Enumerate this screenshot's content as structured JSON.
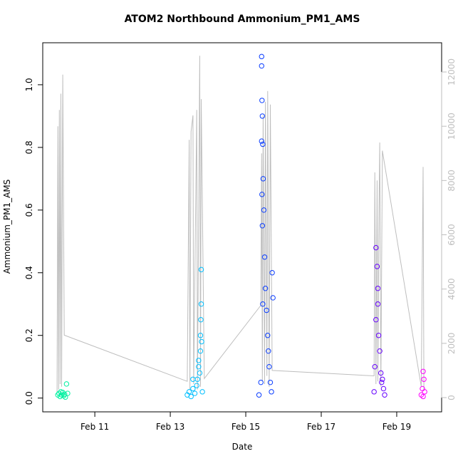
{
  "chart_data": {
    "type": "scatter",
    "title": "ATOM2 Northbound Ammonium_PM1_AMS",
    "x_label": "Date",
    "y_label": "Ammonium_PM1_AMS",
    "xlim": [
      9.62,
      20.19
    ],
    "ylim": [
      -0.044,
      1.134
    ],
    "y2lim": [
      -525,
      13077
    ],
    "xticks": [
      {
        "value": 11,
        "label": "Feb 11"
      },
      {
        "value": 13,
        "label": "Feb 13"
      },
      {
        "value": 15,
        "label": "Feb 15"
      },
      {
        "value": 17,
        "label": "Feb 17"
      },
      {
        "value": 19,
        "label": "Feb 19"
      }
    ],
    "yticks": [
      {
        "value": 0,
        "label": "0.0"
      },
      0.2,
      0.4,
      0.6,
      0.8,
      {
        "value": 1,
        "label": "1.0"
      }
    ],
    "y2ticks": [
      0,
      2000,
      4000,
      6000,
      8000,
      10000,
      12000
    ],
    "series": [
      {
        "color": "#00f0a0",
        "x": [
          10.02,
          10.05,
          10.08,
          10.1,
          10.12,
          10.15,
          10.18,
          10.2,
          10.22,
          10.25,
          10.28
        ],
        "values": [
          0.01,
          0.015,
          0.005,
          0.02,
          0.01,
          0.018,
          0.008,
          0.012,
          0.003,
          0.045,
          0.015
        ]
      },
      {
        "color": "#00bfff",
        "x": [
          13.45,
          13.5,
          13.55,
          13.6,
          13.65,
          13.7,
          13.72,
          13.75,
          13.78,
          13.8,
          13.8,
          13.81,
          13.82,
          13.82,
          13.83,
          13.85,
          13.6,
          13.75
        ],
        "values": [
          0.01,
          0.02,
          0.005,
          0.03,
          0.015,
          0.04,
          0.06,
          0.12,
          0.08,
          0.15,
          0.2,
          0.25,
          0.3,
          0.41,
          0.18,
          0.02,
          0.06,
          0.1
        ]
      },
      {
        "color": "#0a3dff",
        "x": [
          15.35,
          15.4,
          15.42,
          15.42,
          15.43,
          15.44,
          15.45,
          15.46,
          15.48,
          15.5,
          15.52,
          15.55,
          15.58,
          15.6,
          15.62,
          15.65,
          15.68,
          15.7,
          15.72,
          15.42,
          15.43,
          15.44,
          15.45
        ],
        "values": [
          0.01,
          0.05,
          1.09,
          1.06,
          0.95,
          0.9,
          0.81,
          0.7,
          0.6,
          0.45,
          0.35,
          0.28,
          0.2,
          0.15,
          0.1,
          0.05,
          0.02,
          0.4,
          0.32,
          0.82,
          0.65,
          0.55,
          0.3
        ]
      },
      {
        "color": "#6600ff",
        "x": [
          18.4,
          18.42,
          18.45,
          18.48,
          18.5,
          18.52,
          18.55,
          18.58,
          18.6,
          18.62,
          18.65,
          18.68,
          18.5,
          18.45
        ],
        "values": [
          0.02,
          0.1,
          0.48,
          0.42,
          0.3,
          0.2,
          0.15,
          0.08,
          0.05,
          0.06,
          0.03,
          0.01,
          0.35,
          0.25
        ]
      },
      {
        "color": "#ff00ff",
        "x": [
          19.65,
          19.68,
          19.7,
          19.72,
          19.74,
          19.7
        ],
        "values": [
          0.01,
          0.03,
          0.085,
          0.06,
          0.02,
          0.005
        ]
      },
      {
        "type": "line",
        "axis": "y2",
        "color": "#bebebe",
        "x": [
          10.0,
          10.02,
          10.04,
          10.06,
          10.08,
          10.1,
          10.12,
          10.15,
          10.19,
          13.45,
          13.5,
          13.52,
          13.55,
          13.6,
          13.62,
          13.7,
          13.72,
          13.78,
          13.8,
          13.82,
          13.9,
          15.4,
          15.42,
          15.44,
          15.46,
          15.5,
          15.52,
          15.56,
          15.58,
          15.62,
          15.65,
          15.7,
          18.4,
          18.42,
          18.45,
          18.48,
          18.5,
          18.53,
          18.55,
          18.58,
          18.62,
          19.65,
          19.7,
          19.72
        ],
        "values": [
          200,
          10000,
          300,
          10600,
          500,
          11200,
          400,
          11900,
          2300,
          600,
          9500,
          300,
          9800,
          10400,
          500,
          10600,
          300,
          12600,
          400,
          11000,
          700,
          3400,
          9000,
          600,
          10400,
          500,
          10900,
          800,
          11300,
          400,
          10800,
          1000,
          800,
          8300,
          500,
          8000,
          600,
          7000,
          9400,
          400,
          9100,
          400,
          8500,
          300
        ]
      }
    ]
  }
}
